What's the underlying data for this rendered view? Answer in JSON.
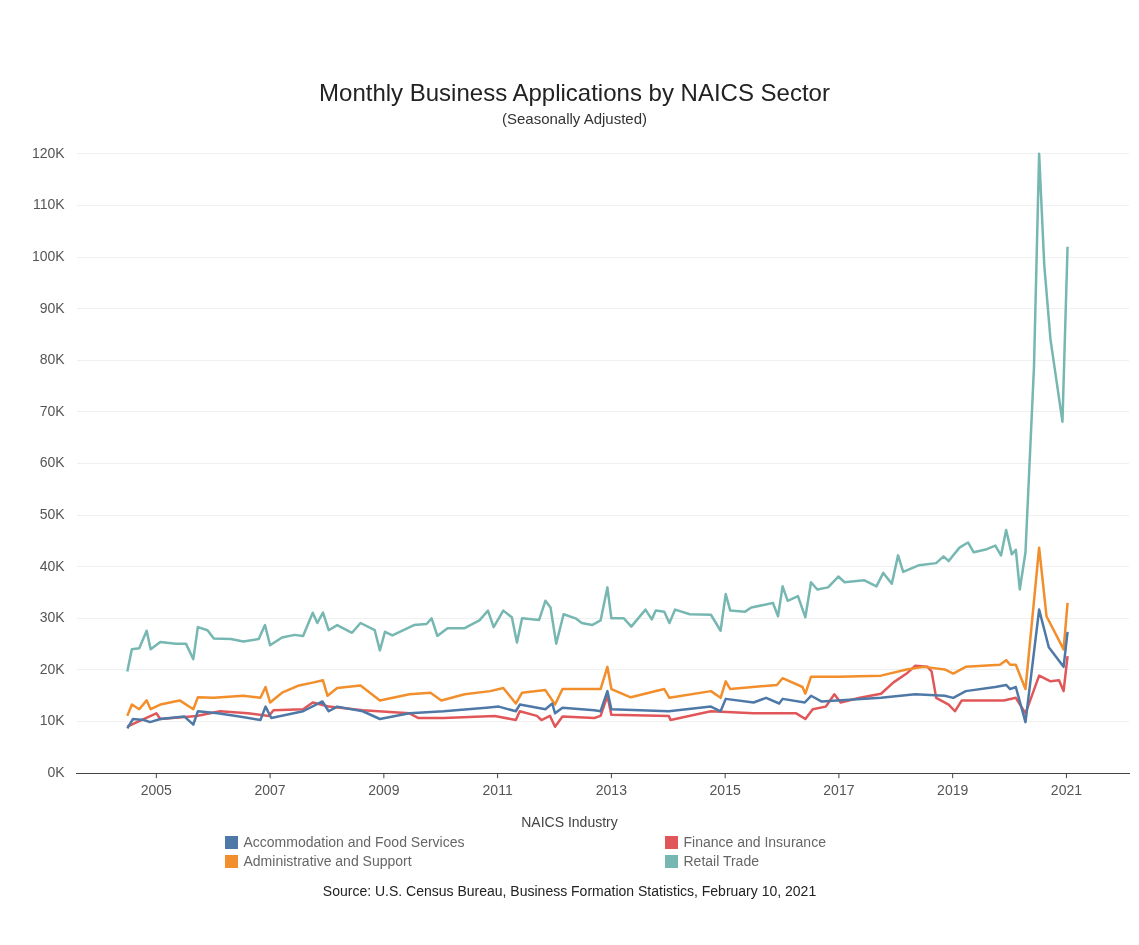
{
  "chart_data": {
    "type": "line",
    "title": "Monthly Business Applications by NAICS Sector",
    "subtitle": "(Seasonally Adjusted)",
    "legend_title": "NAICS Industry",
    "legend": "bottom",
    "grid": "y",
    "marker": "none",
    "line_style": "solid",
    "xlim": [
      2003.6,
      2022.1
    ],
    "xticks": [
      2005,
      2007,
      2009,
      2011,
      2013,
      2015,
      2017,
      2019,
      2021
    ],
    "ylim": [
      0,
      120000
    ],
    "yticks": [
      {
        "value": 0,
        "label": "0K"
      },
      {
        "value": 10000,
        "label": "10K"
      },
      {
        "value": 20000,
        "label": "20K"
      },
      {
        "value": 30000,
        "label": "30K"
      },
      {
        "value": 40000,
        "label": "40K"
      },
      {
        "value": 50000,
        "label": "50K"
      },
      {
        "value": 60000,
        "label": "60K"
      },
      {
        "value": 70000,
        "label": "70K"
      },
      {
        "value": 80000,
        "label": "80K"
      },
      {
        "value": 90000,
        "label": "90K"
      },
      {
        "value": 100000,
        "label": "100K"
      },
      {
        "value": 110000,
        "label": "110K"
      },
      {
        "value": 120000,
        "label": "120K"
      }
    ],
    "annotations": [
      "Source: U.S. Census Bureau, Business Formation Statistics, February 10, 2021"
    ],
    "series": [
      {
        "name": "Accommodation and Food Services",
        "color": "#4e79a7",
        "x": [
          2004.49,
          2004.59,
          2004.78,
          2004.89,
          2005.07,
          2005.49,
          2005.65,
          2005.73,
          2006.08,
          2006.46,
          2006.83,
          2006.92,
          2007.02,
          2007.58,
          2007.92,
          2008.03,
          2008.18,
          2008.63,
          2008.93,
          2009.45,
          2010.05,
          2010.8,
          2011.02,
          2011.32,
          2011.39,
          2011.84,
          2011.96,
          2012.01,
          2012.14,
          2012.7,
          2012.81,
          2012.93,
          2013.0,
          2014.01,
          2014.75,
          2014.92,
          2015.01,
          2015.5,
          2015.72,
          2015.95,
          2016.01,
          2016.4,
          2016.51,
          2016.69,
          2017.74,
          2018.34,
          2018.86,
          2019.01,
          2019.23,
          2019.75,
          2019.94,
          2020.01,
          2020.11,
          2020.28,
          2020.52,
          2020.69,
          2020.95,
          2021.02
        ],
        "values": [
          8700,
          10500,
          10300,
          9900,
          10500,
          11000,
          9400,
          12000,
          11600,
          11000,
          10300,
          12900,
          10700,
          12000,
          13900,
          12000,
          12900,
          12000,
          10500,
          11600,
          12000,
          12700,
          12900,
          12000,
          13300,
          12400,
          13500,
          11600,
          12700,
          12200,
          12000,
          15900,
          12400,
          12000,
          12900,
          12000,
          14400,
          13700,
          14600,
          13500,
          14400,
          13700,
          15000,
          13900,
          14600,
          15300,
          15000,
          14600,
          15900,
          16700,
          17100,
          16300,
          16700,
          9900,
          31700,
          24400,
          20600,
          27400
        ]
      },
      {
        "name": "Administrative and Support",
        "color": "#f28e2b",
        "x": [
          2004.49,
          2004.57,
          2004.7,
          2004.83,
          2004.9,
          2005.07,
          2005.41,
          2005.65,
          2005.73,
          2006.01,
          2006.53,
          2006.83,
          2006.92,
          2007.0,
          2007.21,
          2007.51,
          2007.77,
          2007.93,
          2008.01,
          2008.18,
          2008.59,
          2008.93,
          2009.45,
          2009.82,
          2010.01,
          2010.42,
          2010.87,
          2011.1,
          2011.32,
          2011.43,
          2011.84,
          2012.01,
          2012.14,
          2012.7,
          2012.81,
          2012.93,
          2013.0,
          2013.34,
          2013.93,
          2014.02,
          2014.75,
          2014.92,
          2015.01,
          2015.09,
          2015.91,
          2016.01,
          2016.36,
          2016.41,
          2016.51,
          2016.99,
          2017.74,
          2018.19,
          2018.49,
          2018.86,
          2019.01,
          2019.23,
          2019.83,
          2019.94,
          2020.01,
          2020.11,
          2020.28,
          2020.52,
          2020.65,
          2020.95,
          2021.02
        ],
        "values": [
          11100,
          13300,
          12400,
          14100,
          12400,
          13300,
          14100,
          12400,
          14700,
          14600,
          15000,
          14600,
          16700,
          13700,
          15600,
          17000,
          17600,
          18000,
          15000,
          16500,
          17000,
          14100,
          15300,
          15600,
          14100,
          15300,
          15900,
          16500,
          13500,
          15600,
          16100,
          13300,
          16300,
          16300,
          16300,
          20600,
          16300,
          14700,
          16300,
          14600,
          15900,
          14600,
          17800,
          16300,
          17100,
          18400,
          16700,
          15400,
          18700,
          18700,
          18900,
          20100,
          20600,
          20100,
          19300,
          20600,
          21000,
          21900,
          21000,
          21000,
          16300,
          43700,
          30400,
          24000,
          33000
        ]
      },
      {
        "name": "Finance and Insurance",
        "color": "#e15759",
        "x": [
          2004.49,
          2004.66,
          2005.0,
          2005.07,
          2005.71,
          2006.12,
          2006.61,
          2006.98,
          2007.06,
          2007.58,
          2007.75,
          2008.03,
          2008.63,
          2009.45,
          2009.6,
          2010.05,
          2010.95,
          2011.32,
          2011.39,
          2011.69,
          2011.77,
          2011.92,
          2012.01,
          2012.14,
          2012.7,
          2012.81,
          2012.93,
          2013.0,
          2014.01,
          2014.04,
          2014.75,
          2015.5,
          2016.25,
          2016.41,
          2016.54,
          2016.77,
          2016.92,
          2017.03,
          2017.37,
          2017.74,
          2017.96,
          2018.19,
          2018.34,
          2018.56,
          2018.63,
          2018.71,
          2018.93,
          2019.04,
          2019.16,
          2019.9,
          2020.11,
          2020.28,
          2020.52,
          2020.72,
          2020.87,
          2020.95,
          2021.02
        ],
        "values": [
          9000,
          9900,
          11600,
          10500,
          11100,
          12000,
          11600,
          11100,
          12200,
          12400,
          13700,
          12900,
          12200,
          11600,
          10700,
          10700,
          11100,
          10300,
          12000,
          11100,
          10300,
          11100,
          9000,
          11000,
          10700,
          11100,
          15000,
          11300,
          11100,
          10300,
          12000,
          11600,
          11600,
          10500,
          12400,
          12900,
          15300,
          13700,
          14600,
          15400,
          17600,
          19300,
          20800,
          20600,
          19700,
          14600,
          13300,
          12000,
          14100,
          14100,
          14600,
          11600,
          18900,
          17800,
          18000,
          15900,
          22700
        ]
      },
      {
        "name": "Retail Trade",
        "color": "#76b7b2",
        "x": [
          2004.49,
          2004.57,
          2004.7,
          2004.83,
          2004.9,
          2005.07,
          2005.34,
          2005.52,
          2005.65,
          2005.73,
          2005.9,
          2006.01,
          2006.31,
          2006.53,
          2006.8,
          2006.91,
          2007.0,
          2007.21,
          2007.43,
          2007.58,
          2007.75,
          2007.83,
          2007.93,
          2008.03,
          2008.18,
          2008.44,
          2008.59,
          2008.84,
          2008.93,
          2009.02,
          2009.15,
          2009.53,
          2009.75,
          2009.84,
          2009.94,
          2010.12,
          2010.42,
          2010.68,
          2010.83,
          2010.93,
          2011.1,
          2011.25,
          2011.34,
          2011.43,
          2011.73,
          2011.84,
          2011.93,
          2012.03,
          2012.16,
          2012.37,
          2012.48,
          2012.66,
          2012.81,
          2012.93,
          2013.0,
          2013.22,
          2013.35,
          2013.6,
          2013.71,
          2013.78,
          2013.93,
          2014.02,
          2014.12,
          2014.38,
          2014.75,
          2014.92,
          2015.01,
          2015.09,
          2015.35,
          2015.46,
          2015.72,
          2015.84,
          2015.93,
          2016.01,
          2016.1,
          2016.28,
          2016.41,
          2016.51,
          2016.62,
          2016.81,
          2016.99,
          2017.1,
          2017.44,
          2017.66,
          2017.78,
          2017.93,
          2018.04,
          2018.13,
          2018.41,
          2018.71,
          2018.84,
          2018.93,
          2019.12,
          2019.27,
          2019.37,
          2019.6,
          2019.75,
          2019.85,
          2019.94,
          2020.04,
          2020.11,
          2020.18,
          2020.28,
          2020.43,
          2020.52,
          2020.61,
          2020.72,
          2020.93,
          2021.02
        ],
        "values": [
          19700,
          24000,
          24200,
          27600,
          24000,
          25400,
          25100,
          25100,
          22100,
          28300,
          27700,
          26100,
          26000,
          25500,
          26000,
          28700,
          24800,
          26300,
          26800,
          26600,
          31100,
          29100,
          31100,
          27700,
          28700,
          27200,
          29100,
          27700,
          23800,
          27400,
          26700,
          28700,
          28900,
          30000,
          26600,
          28100,
          28100,
          29600,
          31500,
          28300,
          31500,
          30200,
          25300,
          30000,
          29700,
          33400,
          32100,
          25100,
          30800,
          30000,
          29100,
          28700,
          29600,
          36000,
          30000,
          30000,
          28400,
          31700,
          29800,
          31500,
          31300,
          29100,
          31700,
          30800,
          30700,
          27600,
          34700,
          31500,
          31300,
          32100,
          32700,
          33000,
          30400,
          36200,
          33400,
          34300,
          30200,
          37000,
          35600,
          36000,
          38100,
          37000,
          37400,
          36200,
          38800,
          36700,
          42200,
          39000,
          40300,
          40700,
          42000,
          41100,
          43700,
          44700,
          42800,
          43400,
          44100,
          42200,
          47100,
          42400,
          43300,
          35600,
          42800,
          78800,
          120000,
          98500,
          84000,
          68100,
          102000
        ]
      }
    ]
  }
}
